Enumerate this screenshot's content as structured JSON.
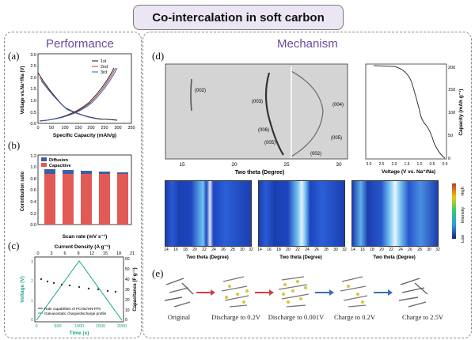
{
  "header": {
    "title": "Co-intercalation in soft carbon"
  },
  "performance": {
    "title": "Performance",
    "panel_a": {
      "tag": "(a)",
      "ylabel": "Voltage vs.Na⁺/Na (V)",
      "xlabel": "Specific Capacity (mAh/g)",
      "legend": [
        "1st",
        "2nd",
        "3rd"
      ],
      "xticks": [
        "0",
        "50",
        "100",
        "150",
        "200",
        "250",
        "300",
        "350"
      ],
      "yticks": [
        "0.0",
        "0.5",
        "1.0",
        "1.5",
        "2.0",
        "2.5",
        "3.0"
      ]
    },
    "panel_b": {
      "tag": "(b)",
      "ylabel": "Contribution ratio",
      "xlabel": "Scan rate (mV s⁻¹)",
      "legend": [
        "Diffusion",
        "Capacitive"
      ],
      "yticks": [
        "0.0",
        "0.2",
        "0.4",
        "0.6",
        "0.8",
        "1.0",
        "1.2"
      ],
      "colors": {
        "diffusion": "#3a5fa8",
        "capacitive": "#e25a55"
      }
    },
    "panel_c": {
      "tag": "(c)",
      "top_label": "Current Density (A g⁻¹)",
      "top_ticks": [
        "0",
        "3",
        "6",
        "9",
        "12",
        "15",
        "18",
        "21"
      ],
      "ylabel_left": "Voltage (V)",
      "ylabel_right": "Capacitance (F g⁻¹)",
      "xlabel": "Time (s)",
      "xticks": [
        "0",
        "500",
        "1000",
        "1500",
        "2000"
      ],
      "yticks_left": [
        "0",
        "1",
        "2",
        "3"
      ],
      "yticks_right": [
        "0",
        "10",
        "20",
        "30",
        "40",
        "50",
        "60"
      ],
      "legend": [
        "Rate capabilities of PCNs//HN-PPs",
        "Galvanostatic charge/discharge profile"
      ],
      "colors": {
        "voltage": "#1aa58a",
        "rate": "#333333"
      }
    }
  },
  "mechanism": {
    "title": "Mechanism",
    "panel_d": {
      "tag": "(d)",
      "xrd_xlabel": "Two theta (Degree)",
      "xrd_xticks": [
        "15",
        "20",
        "25",
        "30"
      ],
      "peaks": [
        "(002)",
        "(003)",
        "(004)",
        "(006)",
        "(005)",
        "(005)",
        "(002)"
      ],
      "cap_ylabel": "Capacity (mAh g⁻¹)",
      "cap_xlabel": "Voltage (V vs. Na⁺/Na)",
      "cap_yticks": [
        "0",
        "50",
        "100",
        "150",
        "200"
      ],
      "cap_xticks": [
        "3.0",
        "2.5",
        "2.0",
        "1.5",
        "1.0",
        "0.5",
        "0.0"
      ],
      "heat_xlabel": "Two theta (Degree)",
      "heat_xticks": [
        "14",
        "16",
        "18",
        "20",
        "22",
        "24",
        "26",
        "28",
        "30",
        "32"
      ],
      "intensity_label": "Intensity",
      "intensity_low": "Low",
      "intensity_high": "High"
    },
    "panel_e": {
      "tag": "(e)",
      "stages": [
        "Original",
        "Discharge to 0.2V",
        "Discharge to 0.001V",
        "Charge to 0.2V",
        "Charge to 2.5V"
      ]
    }
  }
}
